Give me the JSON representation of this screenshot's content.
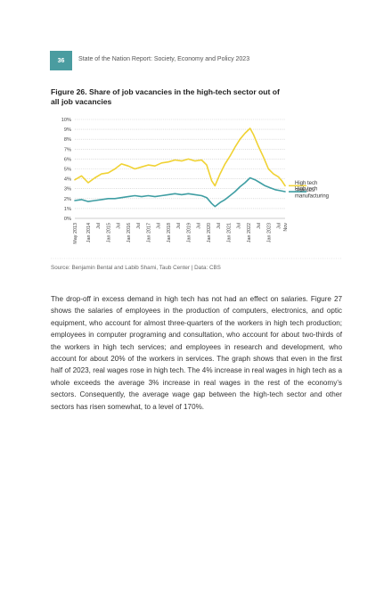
{
  "header": {
    "page_number": "36",
    "running_head": "State of the Nation Report: Society, Economy and Policy 2023"
  },
  "figure": {
    "title": "Figure 26. Share of job vacancies in the high-tech sector out of all job vacancies",
    "source": "Source: Benjamin Bental and Labib Shami, Taub Center | Data: CBS"
  },
  "chart_data": {
    "type": "line",
    "title": "Figure 26. Share of job vacancies in the high-tech sector out of all job vacancies",
    "xlabel": "",
    "ylabel": "",
    "x_range": [
      "2013-05",
      "2023-11"
    ],
    "ylim": [
      0,
      10
    ],
    "y_ticks": [
      "0%",
      "1%",
      "2%",
      "3%",
      "4%",
      "5%",
      "6%",
      "7%",
      "8%",
      "9%",
      "10%"
    ],
    "x_ticks": [
      {
        "label": "May 2013",
        "date": "2013-05"
      },
      {
        "label": "Jan 2014",
        "date": "2014-01"
      },
      {
        "label": "Jul",
        "date": "2014-07"
      },
      {
        "label": "Jan 2015",
        "date": "2015-01"
      },
      {
        "label": "Jul",
        "date": "2015-07"
      },
      {
        "label": "Jan 2016",
        "date": "2016-01"
      },
      {
        "label": "Jul",
        "date": "2016-07"
      },
      {
        "label": "Jan 2017",
        "date": "2017-01"
      },
      {
        "label": "Jul",
        "date": "2017-07"
      },
      {
        "label": "Jan 2018",
        "date": "2018-01"
      },
      {
        "label": "Jul",
        "date": "2018-07"
      },
      {
        "label": "Jan 2019",
        "date": "2019-01"
      },
      {
        "label": "Jul",
        "date": "2019-07"
      },
      {
        "label": "Jan 2020",
        "date": "2020-01"
      },
      {
        "label": "Jul",
        "date": "2020-07"
      },
      {
        "label": "Jan 2021",
        "date": "2021-01"
      },
      {
        "label": "Jul",
        "date": "2021-07"
      },
      {
        "label": "Jan 2022",
        "date": "2022-01"
      },
      {
        "label": "Jul",
        "date": "2022-07"
      },
      {
        "label": "Jan 2023",
        "date": "2023-01"
      },
      {
        "label": "Jul",
        "date": "2023-07"
      },
      {
        "label": "Nov",
        "date": "2023-11"
      }
    ],
    "grid": "horizontal dotted",
    "legend_position": "right, at line ends",
    "series": [
      {
        "name": "High tech services",
        "legend_lines": [
          "High tech",
          "services"
        ],
        "color": "#f0d233",
        "points": [
          [
            "2013-05",
            3.9
          ],
          [
            "2013-09",
            4.3
          ],
          [
            "2014-01",
            3.6
          ],
          [
            "2014-05",
            4.1
          ],
          [
            "2014-09",
            4.5
          ],
          [
            "2015-01",
            4.6
          ],
          [
            "2015-05",
            5.0
          ],
          [
            "2015-09",
            5.5
          ],
          [
            "2016-01",
            5.3
          ],
          [
            "2016-05",
            5.0
          ],
          [
            "2016-09",
            5.2
          ],
          [
            "2017-01",
            5.4
          ],
          [
            "2017-05",
            5.3
          ],
          [
            "2017-09",
            5.6
          ],
          [
            "2018-01",
            5.7
          ],
          [
            "2018-05",
            5.9
          ],
          [
            "2018-09",
            5.8
          ],
          [
            "2019-01",
            6.0
          ],
          [
            "2019-05",
            5.8
          ],
          [
            "2019-09",
            5.9
          ],
          [
            "2019-12",
            5.4
          ],
          [
            "2020-03",
            3.8
          ],
          [
            "2020-05",
            3.3
          ],
          [
            "2020-08",
            4.5
          ],
          [
            "2020-11",
            5.5
          ],
          [
            "2021-02",
            6.3
          ],
          [
            "2021-05",
            7.2
          ],
          [
            "2021-08",
            8.0
          ],
          [
            "2021-11",
            8.6
          ],
          [
            "2022-02",
            9.1
          ],
          [
            "2022-04",
            8.5
          ],
          [
            "2022-07",
            7.3
          ],
          [
            "2022-10",
            6.2
          ],
          [
            "2023-01",
            5.0
          ],
          [
            "2023-04",
            4.5
          ],
          [
            "2023-07",
            4.2
          ],
          [
            "2023-09",
            3.8
          ],
          [
            "2023-11",
            3.3
          ]
        ]
      },
      {
        "name": "High tech manufacturing",
        "legend_lines": [
          "High tech",
          "manufacturing"
        ],
        "color": "#3f9ea3",
        "points": [
          [
            "2013-05",
            1.8
          ],
          [
            "2013-09",
            1.9
          ],
          [
            "2014-01",
            1.7
          ],
          [
            "2014-05",
            1.8
          ],
          [
            "2014-09",
            1.9
          ],
          [
            "2015-01",
            2.0
          ],
          [
            "2015-05",
            2.0
          ],
          [
            "2015-09",
            2.1
          ],
          [
            "2016-01",
            2.2
          ],
          [
            "2016-05",
            2.3
          ],
          [
            "2016-09",
            2.2
          ],
          [
            "2017-01",
            2.3
          ],
          [
            "2017-05",
            2.2
          ],
          [
            "2017-09",
            2.3
          ],
          [
            "2018-01",
            2.4
          ],
          [
            "2018-05",
            2.5
          ],
          [
            "2018-09",
            2.4
          ],
          [
            "2019-01",
            2.5
          ],
          [
            "2019-05",
            2.4
          ],
          [
            "2019-09",
            2.3
          ],
          [
            "2019-12",
            2.1
          ],
          [
            "2020-03",
            1.5
          ],
          [
            "2020-05",
            1.2
          ],
          [
            "2020-08",
            1.6
          ],
          [
            "2020-11",
            1.9
          ],
          [
            "2021-02",
            2.3
          ],
          [
            "2021-05",
            2.7
          ],
          [
            "2021-08",
            3.2
          ],
          [
            "2021-11",
            3.6
          ],
          [
            "2022-02",
            4.1
          ],
          [
            "2022-05",
            3.9
          ],
          [
            "2022-08",
            3.6
          ],
          [
            "2022-11",
            3.3
          ],
          [
            "2023-02",
            3.1
          ],
          [
            "2023-05",
            2.9
          ],
          [
            "2023-08",
            2.8
          ],
          [
            "2023-11",
            2.7
          ]
        ]
      }
    ]
  },
  "body": {
    "paragraph": "The drop-off in excess demand in high tech has not had an effect on salaries. Figure 27 shows the salaries of employees in the production of computers, electronics, and optic equipment, who account for almost three-quarters of the workers in high tech production; employees in computer programing and consultation, who account for about two-thirds of the workers in high tech services; and employees in research and development, who account for about 20% of the workers in services. The graph shows that even in the first half of 2023, real wages rose in high tech. The 4% increase in real wages in high tech as a whole exceeds the average 3% increase in real wages in the rest of the economy’s sectors. Consequently, the average wage gap between the high-tech sector and other sectors has risen somewhat, to a level of 170%."
  }
}
